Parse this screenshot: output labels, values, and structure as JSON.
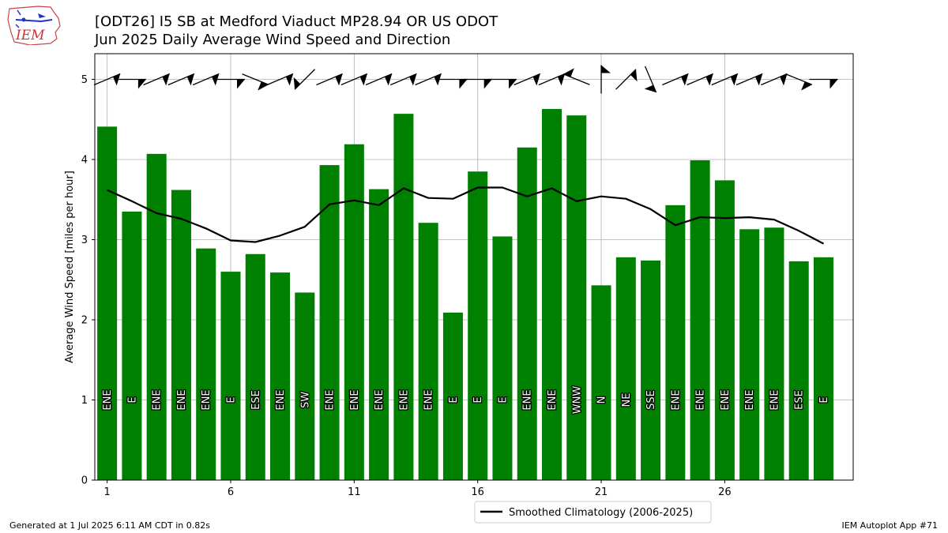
{
  "header": {
    "title_line1": "[ODT26] I5 SB at Medford Viaduct MP28.94 OR US ODOT",
    "title_line2": "Jun 2025 Daily Average Wind Speed and Direction",
    "logo_text": "IEM"
  },
  "footer": {
    "generated": "Generated at 1 Jul 2025 6:11 AM CDT in 0.82s",
    "app": "IEM Autoplot App #71"
  },
  "colors": {
    "bar": "#008000",
    "climatology": "#000000",
    "grid": "#b0b0b0"
  },
  "chart_data": {
    "type": "bar",
    "title": "[ODT26] I5 SB at Medford Viaduct MP28.94 OR US ODOT",
    "subtitle": "Jun 2025 Daily Average Wind Speed and Direction",
    "xlabel": "",
    "ylabel": "Average Wind Speed [miles per hour]",
    "xlim": [
      0.5,
      31.2
    ],
    "ylim": [
      0,
      5.32
    ],
    "xticks": [
      1,
      6,
      11,
      16,
      21,
      26
    ],
    "yticks": [
      0,
      1,
      2,
      3,
      4,
      5
    ],
    "grid": true,
    "legend_position": "bottom-center, below plot",
    "days": [
      1,
      2,
      3,
      4,
      5,
      6,
      7,
      8,
      9,
      10,
      11,
      12,
      13,
      14,
      15,
      16,
      17,
      18,
      19,
      20,
      21,
      22,
      23,
      24,
      25,
      26,
      27,
      28,
      29,
      30
    ],
    "series": [
      {
        "name": "",
        "kind": "bar",
        "values": [
          4.41,
          3.35,
          4.07,
          3.62,
          2.89,
          2.6,
          2.82,
          2.59,
          2.34,
          3.93,
          4.19,
          3.63,
          4.57,
          3.21,
          2.09,
          3.85,
          3.04,
          4.15,
          4.63,
          4.55,
          2.43,
          2.78,
          2.74,
          3.43,
          3.99,
          3.74,
          3.13,
          3.15,
          2.73,
          2.78
        ]
      },
      {
        "name": "Smoothed Climatology (2006-2025)",
        "kind": "line",
        "values": [
          3.62,
          3.48,
          3.33,
          3.26,
          3.14,
          2.99,
          2.97,
          3.05,
          3.16,
          3.44,
          3.49,
          3.43,
          3.64,
          3.52,
          3.51,
          3.65,
          3.65,
          3.54,
          3.64,
          3.48,
          3.54,
          3.51,
          3.38,
          3.18,
          3.28,
          3.27,
          3.28,
          3.25,
          3.11,
          2.95
        ]
      }
    ],
    "direction_labels": [
      "ENE",
      "E",
      "ENE",
      "ENE",
      "ENE",
      "E",
      "ESE",
      "ENE",
      "SW",
      "ENE",
      "ENE",
      "ENE",
      "ENE",
      "ENE",
      "E",
      "E",
      "E",
      "ENE",
      "ENE",
      "WNW",
      "N",
      "NE",
      "SSE",
      "ENE",
      "ENE",
      "ENE",
      "ENE",
      "ENE",
      "ESE",
      "E"
    ],
    "wind_direction_deg": [
      67,
      90,
      67,
      67,
      67,
      90,
      112,
      67,
      225,
      67,
      67,
      67,
      67,
      67,
      90,
      90,
      90,
      67,
      67,
      292,
      0,
      45,
      157,
      67,
      67,
      67,
      67,
      67,
      112,
      90
    ],
    "barb_height": 5.0
  }
}
